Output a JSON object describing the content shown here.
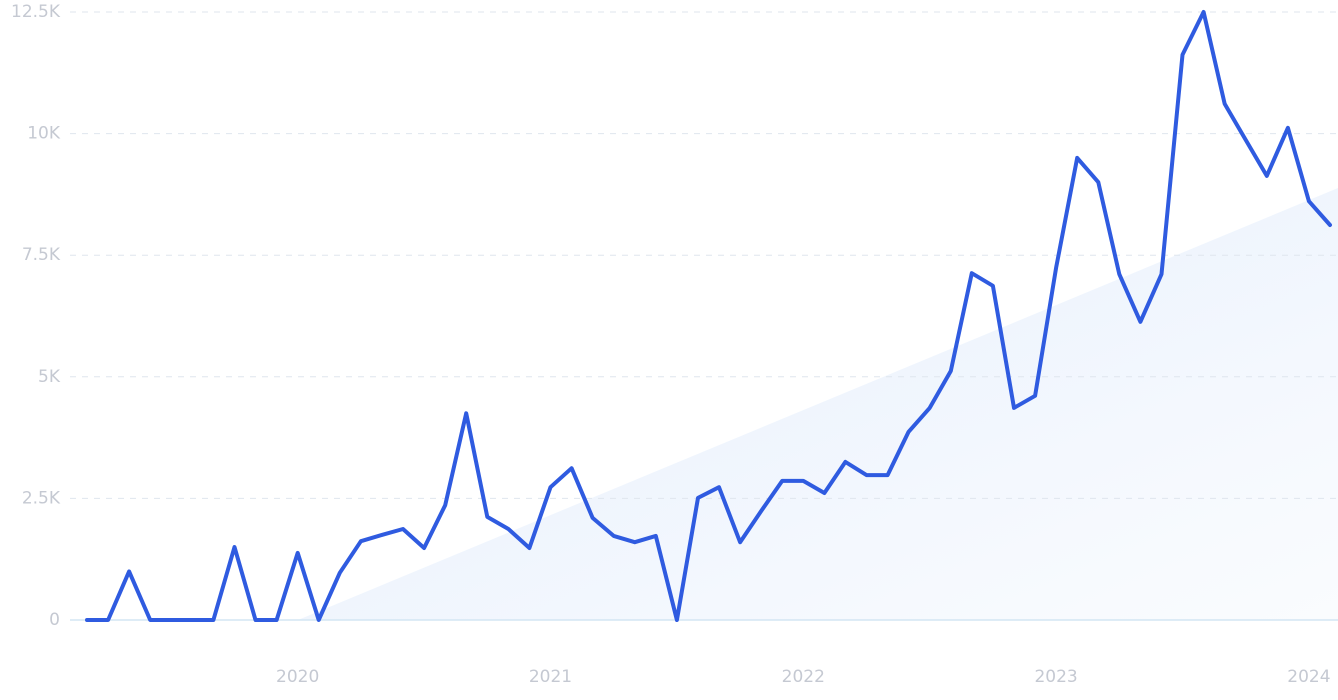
{
  "chart_data": {
    "type": "line",
    "categories": [
      null,
      null,
      null,
      null,
      null,
      null,
      null,
      null,
      null,
      null,
      "2020",
      null,
      null,
      null,
      null,
      null,
      null,
      null,
      null,
      null,
      null,
      null,
      "2021",
      null,
      null,
      null,
      null,
      null,
      null,
      null,
      null,
      null,
      null,
      null,
      "2022",
      null,
      null,
      null,
      null,
      null,
      null,
      null,
      null,
      null,
      null,
      null,
      "2023",
      null,
      null,
      null,
      null,
      null,
      null,
      null,
      null,
      null,
      null,
      null,
      "2024",
      null
    ],
    "series": [
      {
        "color": "#2f5be0",
        "values": [
          0,
          0,
          1000,
          0,
          0,
          0,
          0,
          1500,
          0,
          0,
          1380,
          0,
          970,
          1620,
          1750,
          1870,
          1480,
          2360,
          4250,
          2120,
          1870,
          1480,
          2730,
          3120,
          2100,
          1730,
          1600,
          1730,
          0,
          2510,
          2730,
          1600,
          2240,
          2860,
          2860,
          2610,
          3250,
          2980,
          2980,
          3870,
          4360,
          5120,
          7130,
          6870,
          4360,
          4610,
          7240,
          9500,
          9000,
          7110,
          6130,
          7110,
          11620,
          12500,
          10610,
          9870,
          9130,
          10120,
          8610,
          8120
        ]
      }
    ],
    "ylim": [
      0,
      12500
    ],
    "yticks": [
      0,
      {
        "value": 2500,
        "label": "2.5K"
      },
      {
        "value": 5000,
        "label": "5K"
      },
      {
        "value": 7500,
        "label": "7.5K"
      },
      {
        "value": 10000,
        "label": "10K"
      },
      {
        "value": 12500,
        "label": "12.5K"
      }
    ],
    "grid": true
  }
}
